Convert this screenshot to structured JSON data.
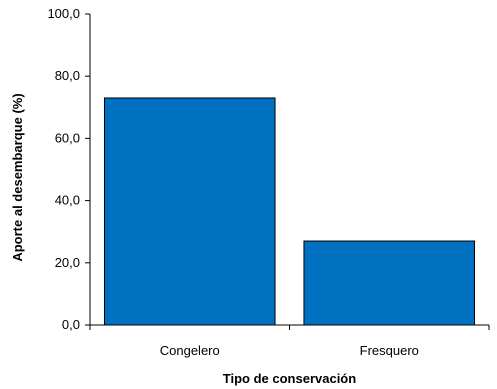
{
  "chart_data": {
    "type": "bar",
    "categories": [
      "Congelero",
      "Fresquero"
    ],
    "values": [
      73.0,
      27.0
    ],
    "title": "",
    "xlabel": "Tipo de conservación",
    "ylabel": "Aporte al desembarque (%)",
    "ylim": [
      0,
      100
    ],
    "yticks": [
      0,
      20,
      40,
      60,
      80,
      100
    ],
    "ytick_labels": [
      "0,0",
      "20,0",
      "40,0",
      "60,0",
      "80,0",
      "100,0"
    ],
    "bar_color": "#0070C0",
    "grid": false,
    "legend": "none"
  }
}
